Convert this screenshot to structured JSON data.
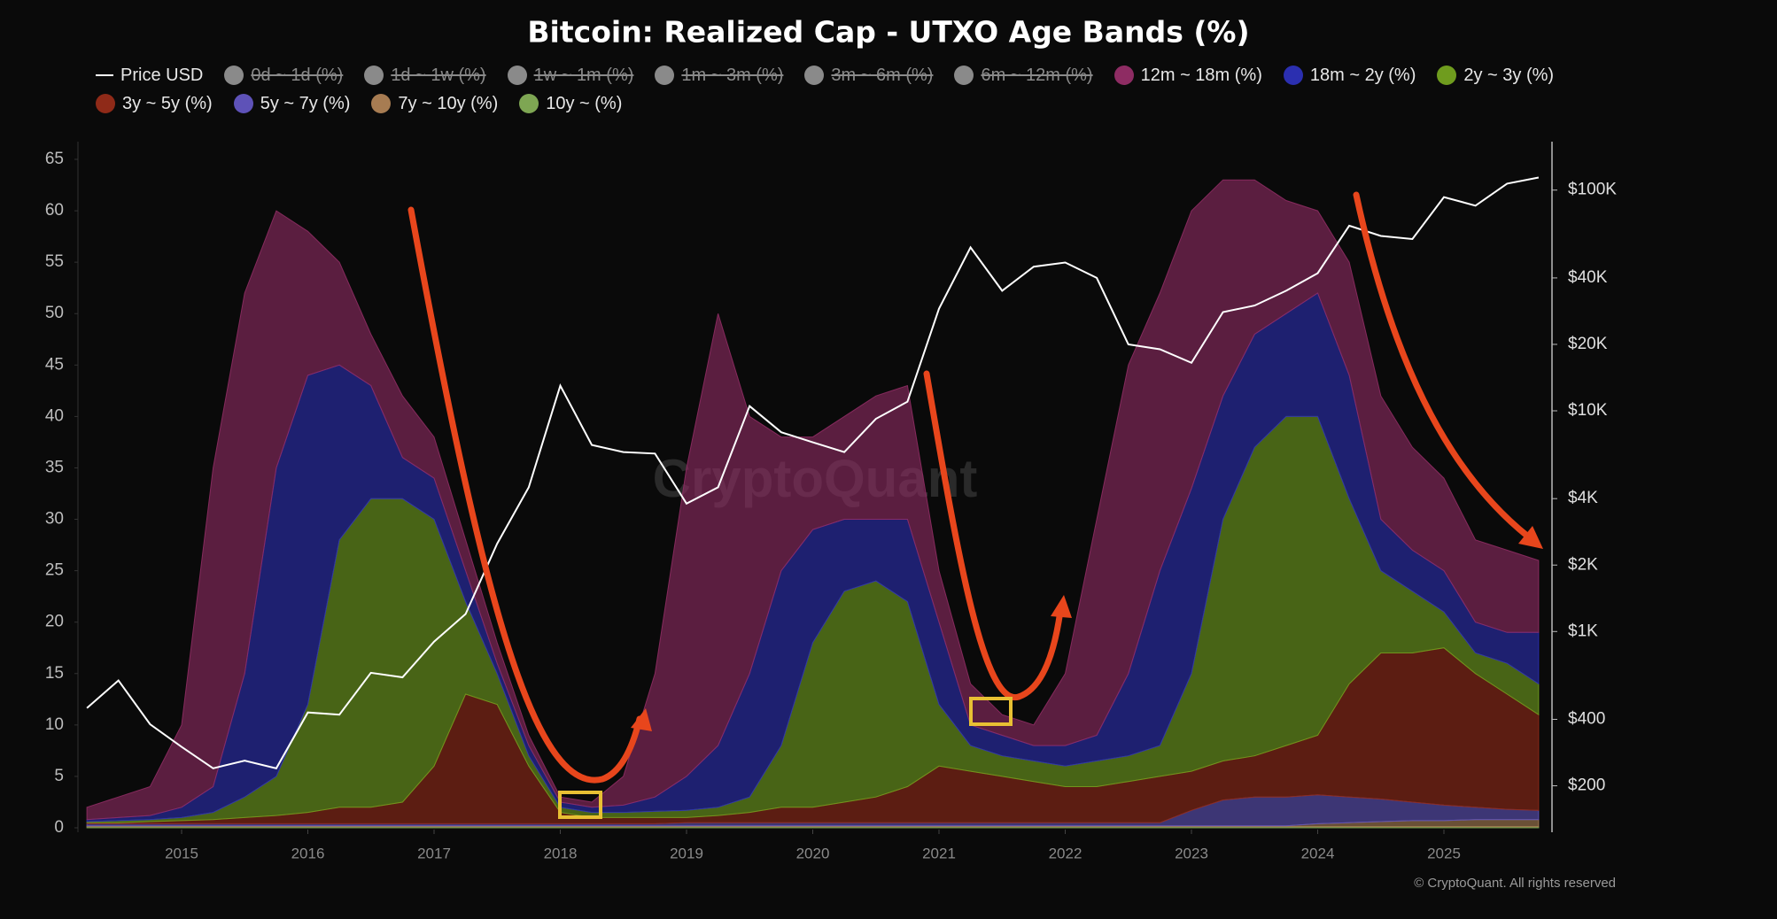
{
  "chart_data": {
    "type": "area",
    "title": "Bitcoin: Realized Cap - UTXO Age Bands (%)",
    "watermark": "CryptoQuant",
    "credit": "© CryptoQuant. All rights reserved",
    "stacked": true,
    "grid": false,
    "x": [
      2014.25,
      2014.5,
      2014.75,
      2015,
      2015.25,
      2015.5,
      2015.75,
      2016,
      2016.25,
      2016.5,
      2016.75,
      2017,
      2017.25,
      2017.5,
      2017.75,
      2018,
      2018.25,
      2018.5,
      2018.75,
      2019,
      2019.25,
      2019.5,
      2019.75,
      2020,
      2020.25,
      2020.5,
      2020.75,
      2021,
      2021.25,
      2021.5,
      2021.75,
      2022,
      2022.25,
      2022.5,
      2022.75,
      2023,
      2023.25,
      2023.5,
      2023.75,
      2024,
      2024.25,
      2024.5,
      2024.75,
      2025,
      2025.25,
      2025.5,
      2025.75
    ],
    "xlim": [
      2014.2,
      2025.8
    ],
    "xticks": [
      2015,
      2016,
      2017,
      2018,
      2019,
      2020,
      2021,
      2022,
      2023,
      2024,
      2025
    ],
    "ylim": [
      0,
      65
    ],
    "yticks": [
      0,
      5,
      10,
      15,
      20,
      25,
      30,
      35,
      40,
      45,
      50,
      55,
      60,
      65
    ],
    "y2lim": [
      129,
      137800
    ],
    "y2scale": "log",
    "y2ticks": [
      {
        "value": 200,
        "label": "$200"
      },
      {
        "value": 400,
        "label": "$400"
      },
      {
        "value": 1000,
        "label": "$1K"
      },
      {
        "value": 2000,
        "label": "$2K"
      },
      {
        "value": 4000,
        "label": "$4K"
      },
      {
        "value": 10000,
        "label": "$10K"
      },
      {
        "value": 20000,
        "label": "$20K"
      },
      {
        "value": 40000,
        "label": "$40K"
      },
      {
        "value": 100000,
        "label": "$100K"
      }
    ],
    "hidden_series": [
      {
        "name": "0d ~ 1d (%)",
        "color": "#8a8a8a"
      },
      {
        "name": "1d ~ 1w (%)",
        "color": "#8a8a8a"
      },
      {
        "name": "1w ~ 1m (%)",
        "color": "#8a8a8a"
      },
      {
        "name": "1m ~ 3m (%)",
        "color": "#8a8a8a"
      },
      {
        "name": "3m ~ 6m (%)",
        "color": "#8a8a8a"
      },
      {
        "name": "6m ~ 12m (%)",
        "color": "#8a8a8a"
      }
    ],
    "series": [
      {
        "name": "Price USD",
        "color": "#ffffff",
        "axis": "y2",
        "type": "line",
        "values": [
          450,
          600,
          380,
          300,
          240,
          260,
          240,
          430,
          420,
          650,
          620,
          900,
          1200,
          2500,
          4500,
          13000,
          7000,
          6500,
          6400,
          3800,
          4500,
          10500,
          8000,
          7200,
          6500,
          9200,
          11000,
          29000,
          55000,
          35000,
          45000,
          47000,
          40000,
          20000,
          19000,
          16500,
          28000,
          30000,
          35000,
          42000,
          69000,
          62000,
          60000,
          93000,
          85000,
          107000,
          114000
        ]
      },
      {
        "name": "12m ~ 18m (%)",
        "color": "#8e2c63",
        "values": [
          1.2,
          2,
          2.8,
          8,
          31,
          37,
          25,
          14,
          10,
          5,
          6,
          4,
          3,
          2,
          1,
          0.5,
          0.5,
          2.8,
          12,
          30,
          42,
          25,
          13,
          9,
          10,
          12,
          13,
          5,
          4,
          2,
          2,
          7,
          21,
          30,
          27,
          27,
          21,
          15,
          11,
          8,
          11,
          12,
          10,
          9,
          8,
          8,
          7
        ]
      },
      {
        "name": "18m ~ 2y (%)",
        "color": "#2b2fb0",
        "values": [
          0.2,
          0.3,
          0.4,
          1,
          2.5,
          12,
          30,
          32,
          17,
          11,
          4,
          4,
          3,
          1,
          1,
          0.5,
          0.5,
          0.7,
          1.4,
          3.3,
          6,
          12,
          17,
          11,
          7,
          6,
          8,
          8,
          2,
          2,
          1.5,
          2,
          2.5,
          8,
          17,
          18,
          12,
          11,
          10,
          12,
          12,
          5,
          4,
          4,
          3,
          3,
          5
        ]
      },
      {
        "name": "2y ~ 3y (%)",
        "color": "#6f9c1e",
        "values": [
          0.1,
          0.2,
          0.2,
          0.3,
          0.7,
          2,
          3.8,
          10.5,
          26,
          30,
          29.5,
          24,
          9,
          3,
          1,
          0.5,
          0.5,
          0.5,
          0.6,
          0.7,
          0.8,
          1.5,
          6,
          16,
          20.5,
          21,
          18,
          6,
          2.5,
          2,
          2,
          2,
          2.5,
          2.5,
          3,
          9.5,
          23.5,
          30,
          32,
          31,
          18,
          8,
          6,
          3.5,
          2,
          3,
          3
        ]
      },
      {
        "name": "3y ~ 5y (%)",
        "color": "#8f2a18",
        "values": [
          0.1,
          0.1,
          0.2,
          0.3,
          0.4,
          0.6,
          0.8,
          1.1,
          1.6,
          1.6,
          2.1,
          5.6,
          12.6,
          11.6,
          5.6,
          1.1,
          0.6,
          0.6,
          0.6,
          0.5,
          0.7,
          1,
          1.5,
          1.5,
          2,
          2.5,
          3.5,
          5.5,
          5,
          4.5,
          4,
          3.5,
          3.5,
          4,
          4.5,
          3.8,
          3.8,
          4,
          5,
          5.8,
          11,
          14.2,
          14.5,
          15.3,
          13,
          11.2,
          9.3
        ]
      },
      {
        "name": "5y ~ 7y (%)",
        "color": "#5e52b8",
        "values": [
          0.2,
          0.2,
          0.2,
          0.2,
          0.2,
          0.2,
          0.2,
          0.2,
          0.2,
          0.2,
          0.2,
          0.2,
          0.2,
          0.2,
          0.2,
          0.2,
          0.2,
          0.2,
          0.2,
          0.3,
          0.3,
          0.3,
          0.3,
          0.3,
          0.3,
          0.3,
          0.3,
          0.3,
          0.3,
          0.3,
          0.3,
          0.3,
          0.3,
          0.3,
          0.3,
          1.5,
          2.5,
          2.8,
          2.8,
          2.8,
          2.5,
          2.2,
          1.8,
          1.5,
          1.2,
          1,
          0.9
        ]
      },
      {
        "name": "7y ~ 10y (%)",
        "color": "#a77c52",
        "values": [
          0.1,
          0.1,
          0.1,
          0.1,
          0.1,
          0.1,
          0.1,
          0.1,
          0.1,
          0.1,
          0.1,
          0.1,
          0.1,
          0.1,
          0.1,
          0.1,
          0.1,
          0.1,
          0.1,
          0.1,
          0.1,
          0.1,
          0.1,
          0.1,
          0.1,
          0.1,
          0.1,
          0.1,
          0.1,
          0.1,
          0.1,
          0.1,
          0.1,
          0.1,
          0.1,
          0.1,
          0.1,
          0.1,
          0.1,
          0.3,
          0.4,
          0.5,
          0.6,
          0.6,
          0.7,
          0.7,
          0.7
        ]
      },
      {
        "name": "10y ~ (%)",
        "color": "#7ea653",
        "values": [
          0.1,
          0.1,
          0.1,
          0.1,
          0.1,
          0.1,
          0.1,
          0.1,
          0.1,
          0.1,
          0.1,
          0.1,
          0.1,
          0.1,
          0.1,
          0.1,
          0.1,
          0.1,
          0.1,
          0.1,
          0.1,
          0.1,
          0.1,
          0.1,
          0.1,
          0.1,
          0.1,
          0.1,
          0.1,
          0.1,
          0.1,
          0.1,
          0.1,
          0.1,
          0.1,
          0.1,
          0.1,
          0.1,
          0.1,
          0.1,
          0.1,
          0.1,
          0.1,
          0.1,
          0.1,
          0.1,
          0.1
        ]
      }
    ]
  }
}
